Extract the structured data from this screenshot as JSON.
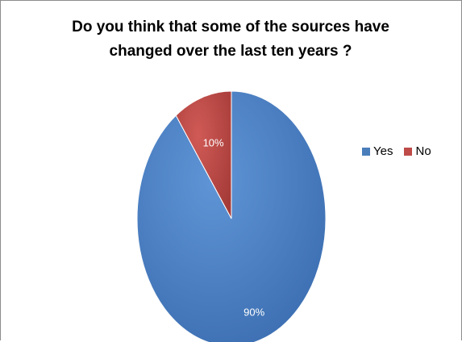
{
  "chart_data": {
    "type": "pie",
    "title": "Do you think that some of the sources have\nchanged over the last ten years ?",
    "categories": [
      "Yes",
      "No"
    ],
    "values": [
      90,
      10
    ],
    "labels": [
      "90%",
      "10%"
    ],
    "colors": [
      "#4a7ebb",
      "#be4b48"
    ],
    "legend": "right"
  }
}
